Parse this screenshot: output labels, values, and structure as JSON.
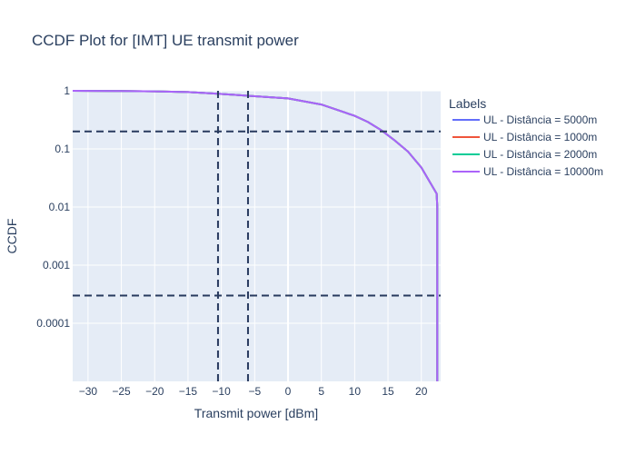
{
  "chart_data": {
    "type": "line",
    "title": "CCDF Plot for [IMT] UE transmit power",
    "xlabel": "Transmit power [dBm]",
    "ylabel": "CCDF",
    "y_scale": "log",
    "xlim": [
      -32.3,
      22.9
    ],
    "ylim_log10": [
      -5.0,
      0.0
    ],
    "x_ticks": [
      {
        "value": -30,
        "label": "−30"
      },
      {
        "value": -25,
        "label": "−25"
      },
      {
        "value": -20,
        "label": "−20"
      },
      {
        "value": -15,
        "label": "−15"
      },
      {
        "value": -10,
        "label": "−10"
      },
      {
        "value": -5,
        "label": "−5"
      },
      {
        "value": 0,
        "label": "0"
      },
      {
        "value": 5,
        "label": "5"
      },
      {
        "value": 10,
        "label": "10"
      },
      {
        "value": 15,
        "label": "15"
      },
      {
        "value": 20,
        "label": "20"
      }
    ],
    "y_ticks": [
      {
        "value": 1,
        "label": "1"
      },
      {
        "value": 0.1,
        "label": "0.1"
      },
      {
        "value": 0.01,
        "label": "0.01"
      },
      {
        "value": 0.001,
        "label": "0.001"
      },
      {
        "value": 0.0001,
        "label": "0.0001"
      }
    ],
    "grid": true,
    "legend": {
      "title": "Labels",
      "placement": "right"
    },
    "series": [
      {
        "name": "UL - Distância = 5000m",
        "color": "#636efa",
        "x": [
          -32.3,
          -25,
          -20,
          -15,
          -10.5,
          -6,
          0,
          5,
          10,
          12,
          14,
          16,
          18,
          20,
          22.3,
          22.4,
          22.4
        ],
        "y": [
          1.0,
          0.99,
          0.98,
          0.95,
          0.89,
          0.82,
          0.74,
          0.58,
          0.37,
          0.29,
          0.21,
          0.14,
          0.09,
          0.048,
          0.017,
          0.01,
          1e-05
        ]
      },
      {
        "name": "UL - Distância = 1000m",
        "color": "#ef553b",
        "x": [
          -32.3,
          -25,
          -20,
          -15,
          -10.5,
          -6,
          0,
          5,
          10,
          12,
          14,
          16,
          18,
          20,
          22.3,
          22.4,
          22.4
        ],
        "y": [
          1.0,
          0.99,
          0.98,
          0.95,
          0.89,
          0.82,
          0.74,
          0.58,
          0.37,
          0.29,
          0.21,
          0.14,
          0.09,
          0.048,
          0.017,
          0.01,
          1e-05
        ]
      },
      {
        "name": "UL - Distância = 2000m",
        "color": "#00cc96",
        "x": [
          -32.3,
          -25,
          -20,
          -15,
          -10.5,
          -6,
          0,
          5,
          10,
          12,
          14,
          16,
          18,
          20,
          22.3,
          22.4,
          22.4
        ],
        "y": [
          1.0,
          0.99,
          0.98,
          0.95,
          0.89,
          0.82,
          0.74,
          0.58,
          0.37,
          0.29,
          0.21,
          0.14,
          0.09,
          0.048,
          0.017,
          0.01,
          1e-05
        ]
      },
      {
        "name": "UL - Distância = 10000m",
        "color": "#ab63fa",
        "x": [
          -32.3,
          -25,
          -20,
          -15,
          -10.5,
          -6,
          0,
          5,
          10,
          12,
          14,
          16,
          18,
          20,
          22.3,
          22.4,
          22.4
        ],
        "y": [
          1.0,
          0.99,
          0.98,
          0.95,
          0.89,
          0.82,
          0.74,
          0.58,
          0.37,
          0.29,
          0.21,
          0.14,
          0.09,
          0.048,
          0.017,
          0.01,
          1e-05
        ]
      }
    ],
    "reference_lines": {
      "horizontal": [
        0.2,
        0.0003
      ],
      "vertical": [
        -10.5,
        -6
      ],
      "color": "#283a5e",
      "style": "dashed"
    }
  }
}
